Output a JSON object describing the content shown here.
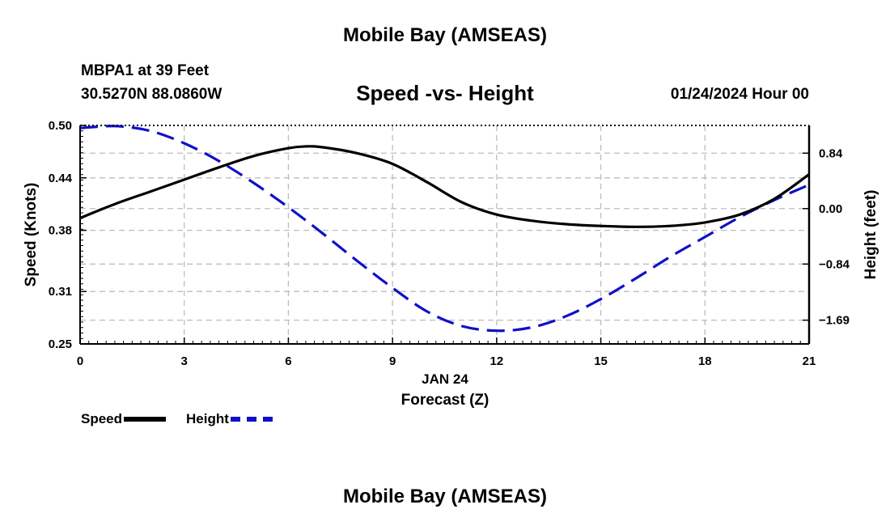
{
  "page": {
    "title": "Mobile Bay (AMSEAS)",
    "station": "MBPA1 at 39 Feet",
    "coords": "30.5270N  88.0860W",
    "date": "01/24/2024 Hour 00",
    "bottom_title": "Mobile Bay (AMSEAS)"
  },
  "colors": {
    "speed": "#000000",
    "height": "#1010c8",
    "grid": "#bdbdbd"
  },
  "chart_data": {
    "type": "line",
    "title": "Speed -vs- Height",
    "xlabel": "Forecast (Z)",
    "xsublabel": "JAN 24",
    "ylabel": "Speed (Knots)",
    "y2label": "Height (feet)",
    "xlim": [
      0,
      21
    ],
    "x_ticks": [
      0,
      3,
      6,
      9,
      12,
      15,
      18,
      21
    ],
    "ylim": [
      0.25,
      0.5
    ],
    "y_ticks": [
      0.25,
      0.31,
      0.38,
      0.44,
      0.5
    ],
    "y_tick_labels": [
      "0.25",
      "0.31",
      "0.38",
      "0.44",
      "0.50"
    ],
    "y2lim": [
      -2.05,
      1.26
    ],
    "y2_ticks": [
      -1.69,
      -0.84,
      0.0,
      0.84
    ],
    "y2_tick_labels": [
      "−1.69",
      "−0.84",
      "0.00",
      "0.84"
    ],
    "grid": true,
    "legend_position": "bottom-left",
    "series": [
      {
        "name": "Speed",
        "axis": "left",
        "style": "solid",
        "x": [
          0,
          1,
          2,
          3,
          4,
          5,
          6,
          6.5,
          7,
          8,
          9,
          10,
          11,
          12,
          13,
          14,
          15,
          16,
          17,
          18,
          19,
          20,
          21
        ],
        "values": [
          0.394,
          0.41,
          0.424,
          0.438,
          0.452,
          0.465,
          0.474,
          0.476,
          0.475,
          0.468,
          0.456,
          0.435,
          0.412,
          0.398,
          0.391,
          0.387,
          0.385,
          0.384,
          0.385,
          0.389,
          0.398,
          0.416,
          0.444
        ]
      },
      {
        "name": "Height",
        "axis": "right",
        "style": "dashed",
        "x": [
          0,
          1,
          2,
          3,
          4,
          5,
          6,
          7,
          8,
          9,
          10,
          11,
          12,
          13,
          14,
          15,
          16,
          17,
          18,
          19,
          20,
          21
        ],
        "values": [
          1.22,
          1.25,
          1.18,
          0.99,
          0.72,
          0.39,
          0.02,
          -0.38,
          -0.8,
          -1.2,
          -1.56,
          -1.78,
          -1.85,
          -1.8,
          -1.63,
          -1.37,
          -1.06,
          -0.73,
          -0.43,
          -0.13,
          0.13,
          0.36
        ]
      }
    ]
  }
}
